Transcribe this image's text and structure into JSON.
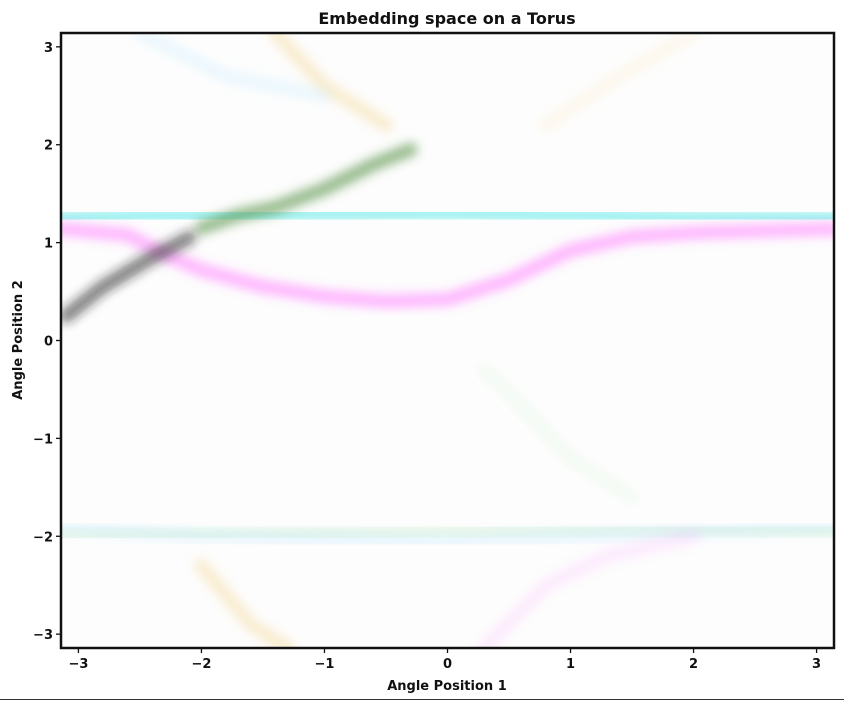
{
  "chart_data": {
    "type": "heatmap",
    "title": "Embedding space on a Torus",
    "xlabel": "Angle Position 1",
    "ylabel": "Angle Position 2",
    "xlim": [
      -3.1416,
      3.1416
    ],
    "ylim": [
      -3.1416,
      3.1416
    ],
    "xticks": [
      -3,
      -2,
      -1,
      0,
      1,
      2,
      3
    ],
    "yticks": [
      -3,
      -2,
      -1,
      0,
      1,
      2,
      3
    ],
    "xtick_labels": [
      "−3",
      "−2",
      "−1",
      "0",
      "1",
      "2",
      "3"
    ],
    "ytick_labels": [
      "−3",
      "−2",
      "−1",
      "0",
      "1",
      "2",
      "3"
    ],
    "grid": false,
    "background": "#fdfdfd",
    "bands": [
      {
        "color": "#ff66ff",
        "opacity": 0.45,
        "points": [
          [
            -3.14,
            1.14
          ],
          [
            -2.6,
            1.08
          ],
          [
            -2.3,
            0.88
          ],
          [
            -2.0,
            0.72
          ],
          [
            -1.5,
            0.55
          ],
          [
            -1.0,
            0.45
          ],
          [
            -0.5,
            0.4
          ],
          [
            0.0,
            0.42
          ],
          [
            0.5,
            0.62
          ],
          [
            1.0,
            0.92
          ],
          [
            1.5,
            1.06
          ],
          [
            2.0,
            1.1
          ],
          [
            2.5,
            1.12
          ],
          [
            3.14,
            1.14
          ]
        ]
      },
      {
        "color": "#4fe8e8",
        "opacity": 0.55,
        "points": [
          [
            -3.14,
            1.25
          ],
          [
            -2.5,
            1.27
          ],
          [
            -2.0,
            1.28
          ],
          [
            -1.0,
            1.29
          ],
          [
            0.0,
            1.3
          ],
          [
            1.0,
            1.28
          ],
          [
            2.0,
            1.25
          ],
          [
            3.14,
            1.25
          ]
        ]
      },
      {
        "color": "#4a8a3a",
        "opacity": 0.55,
        "points": [
          [
            -2.0,
            1.15
          ],
          [
            -1.7,
            1.28
          ],
          [
            -1.4,
            1.36
          ],
          [
            -1.0,
            1.55
          ],
          [
            -0.6,
            1.8
          ],
          [
            -0.3,
            1.95
          ]
        ]
      },
      {
        "color": "#222222",
        "opacity": 0.55,
        "points": [
          [
            -3.1,
            0.25
          ],
          [
            -2.8,
            0.55
          ],
          [
            -2.4,
            0.85
          ],
          [
            -2.1,
            1.05
          ]
        ]
      },
      {
        "color": "#f0c050",
        "opacity": 0.25,
        "points": [
          [
            -1.4,
            3.14
          ],
          [
            -1.0,
            2.6
          ],
          [
            -0.5,
            2.2
          ]
        ]
      },
      {
        "color": "#f0c050",
        "opacity": 0.25,
        "points": [
          [
            -2.0,
            -2.3
          ],
          [
            -1.6,
            -2.9
          ],
          [
            -1.3,
            -3.14
          ]
        ]
      },
      {
        "color": "#9fe09f",
        "opacity": 0.22,
        "points": [
          [
            -3.14,
            -2.0
          ],
          [
            -1.5,
            -1.98
          ],
          [
            0.0,
            -1.95
          ],
          [
            1.5,
            -1.92
          ],
          [
            3.14,
            -1.95
          ]
        ]
      },
      {
        "color": "#9fe0ff",
        "opacity": 0.22,
        "points": [
          [
            -3.14,
            -1.9
          ],
          [
            -2.0,
            -2.0
          ],
          [
            0.0,
            -2.05
          ],
          [
            2.0,
            -1.95
          ],
          [
            3.14,
            -1.9
          ]
        ]
      },
      {
        "color": "#ff99ff",
        "opacity": 0.18,
        "points": [
          [
            0.3,
            -3.14
          ],
          [
            0.8,
            -2.5
          ],
          [
            1.3,
            -2.2
          ],
          [
            2.0,
            -2.0
          ]
        ]
      },
      {
        "color": "#9fe0ff",
        "opacity": 0.18,
        "points": [
          [
            -2.5,
            3.14
          ],
          [
            -1.8,
            2.7
          ],
          [
            -1.0,
            2.5
          ]
        ]
      },
      {
        "color": "#c8f0c8",
        "opacity": 0.18,
        "points": [
          [
            0.3,
            -0.3
          ],
          [
            0.7,
            -0.8
          ],
          [
            1.0,
            -1.2
          ],
          [
            1.5,
            -1.6
          ]
        ]
      },
      {
        "color": "#ffe6a8",
        "opacity": 0.18,
        "points": [
          [
            0.8,
            2.2
          ],
          [
            1.4,
            2.7
          ],
          [
            2.0,
            3.14
          ]
        ]
      }
    ]
  }
}
